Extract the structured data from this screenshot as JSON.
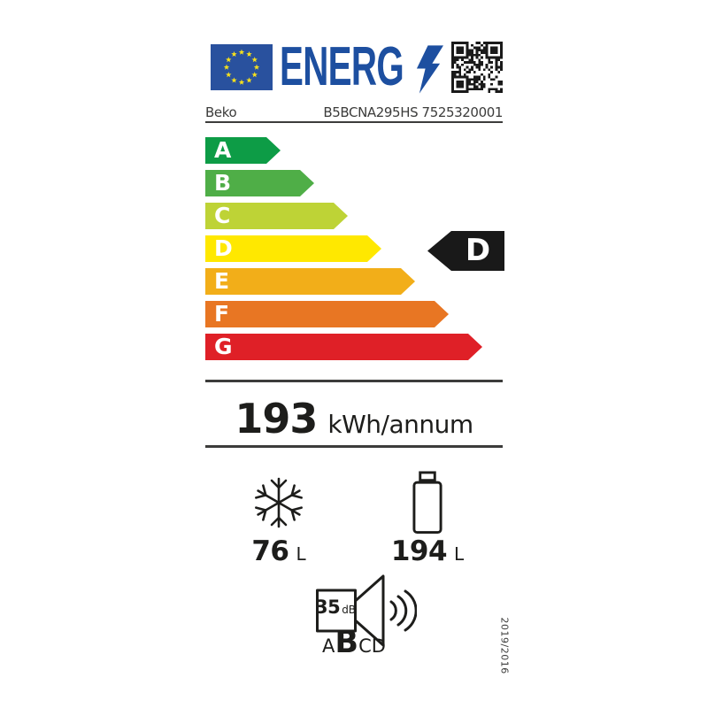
{
  "colors": {
    "eu_blue": "#1d4fa0",
    "flag_blue": "#29519e",
    "star_yellow": "#f8e11c",
    "ink": "#1d1d1b",
    "line": "#3c3c3b",
    "rating_black": "#191919"
  },
  "header": {
    "logo_text": "ENERG",
    "brand": "Beko",
    "model": "B5BCNA295HS 7525320001"
  },
  "scale": {
    "grades": [
      {
        "letter": "A",
        "color": "#0d9c46",
        "length": 85
      },
      {
        "letter": "B",
        "color": "#4fae47",
        "length": 123
      },
      {
        "letter": "C",
        "color": "#bed336",
        "length": 161
      },
      {
        "letter": "D",
        "color": "#ffe800",
        "length": 199
      },
      {
        "letter": "E",
        "color": "#f2ae19",
        "length": 237
      },
      {
        "letter": "F",
        "color": "#e87623",
        "length": 275
      },
      {
        "letter": "G",
        "color": "#df2027",
        "length": 313
      }
    ]
  },
  "rating": {
    "grade": "D"
  },
  "energy": {
    "value": "193",
    "unit": "kWh/annum"
  },
  "compartments": {
    "freezer": {
      "value": "76",
      "unit": "L"
    },
    "fridge": {
      "value": "194",
      "unit": "L"
    }
  },
  "noise": {
    "value": "35",
    "unit": "dB",
    "classes": [
      "A",
      "B",
      "C",
      "D"
    ],
    "active_class": "B"
  },
  "regulation": "2019/2016"
}
